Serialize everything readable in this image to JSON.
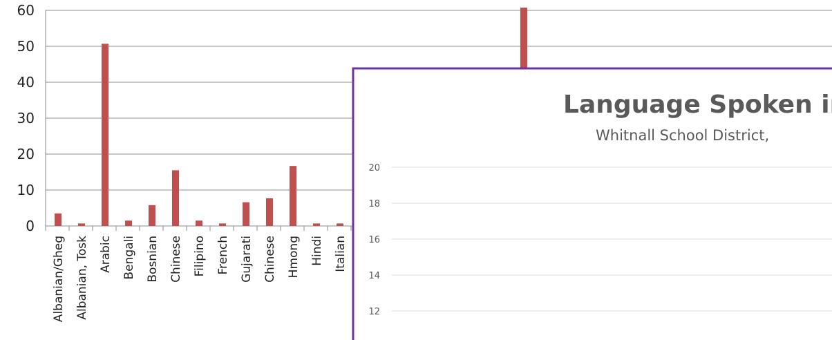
{
  "chart_data": [
    {
      "type": "bar",
      "categories": [
        "Albanian/Gheg",
        "Albanian, Tosk",
        "Arabic",
        "Bengali",
        "Bosnian",
        "Chinese",
        "Filipino",
        "French",
        "Gujarati",
        "Chinese",
        "Hmong",
        "Hindi",
        "Italian"
      ],
      "values": [
        3.5,
        0.7,
        50.7,
        1.5,
        5.8,
        15.5,
        1.5,
        0.7,
        6.6,
        7.7,
        16.7,
        0.7,
        0.7
      ],
      "offscreen_bar_value": 60,
      "ylim": [
        0,
        60
      ],
      "yticks": [
        0,
        10,
        20,
        30,
        40,
        50,
        60
      ],
      "grid": true,
      "bar_color": "#c0504d"
    },
    {
      "type": "bar",
      "title": "Language Spoken in",
      "subtitle": "Whitnall School District,",
      "yticks": [
        12,
        14,
        16,
        18,
        20
      ],
      "ylim": [
        12,
        20
      ],
      "grid": true,
      "border_color": "#7030a0"
    }
  ]
}
